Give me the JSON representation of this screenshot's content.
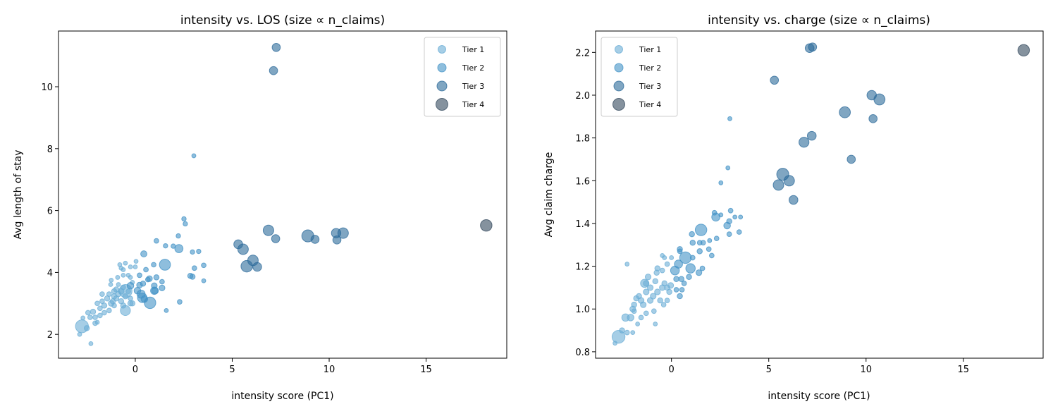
{
  "chart_data": [
    {
      "type": "scatter",
      "title": "intensity vs. LOS (size ∝ n_claims)",
      "xlabel": "intensity score (PC1)",
      "ylabel": "Avg length of stay",
      "xlim": [
        -3.96,
        19.16
      ],
      "ylim": [
        1.23,
        11.8
      ],
      "xticks": [
        0,
        5,
        10,
        15
      ],
      "yticks": [
        2,
        4,
        6,
        8,
        10
      ],
      "grid": false,
      "legend_placement": "top-right",
      "legend": [
        "Tier 1",
        "Tier 2",
        "Tier 3",
        "Tier 4"
      ],
      "point_format": [
        "x",
        "y",
        "size",
        "tier"
      ],
      "points": [
        [
          -2.75,
          2.26,
          150,
          1
        ],
        [
          -2.87,
          2.0,
          15,
          1
        ],
        [
          -2.29,
          1.7,
          15,
          1
        ],
        [
          -2.33,
          2.55,
          20,
          1
        ],
        [
          -2.7,
          2.53,
          15,
          1
        ],
        [
          -2.5,
          2.2,
          25,
          1
        ],
        [
          -2.07,
          2.55,
          20,
          1
        ],
        [
          -1.96,
          2.39,
          15,
          1
        ],
        [
          -2.18,
          2.73,
          25,
          1
        ],
        [
          -1.82,
          2.84,
          20,
          1
        ],
        [
          -1.6,
          2.93,
          25,
          1
        ],
        [
          -1.71,
          3.07,
          20,
          1
        ],
        [
          -1.45,
          3.16,
          25,
          1
        ],
        [
          -1.24,
          3.0,
          30,
          1
        ],
        [
          -1.09,
          3.23,
          25,
          1
        ],
        [
          -1.35,
          3.3,
          20,
          1
        ],
        [
          -0.98,
          3.45,
          25,
          1
        ],
        [
          -0.73,
          3.39,
          30,
          1
        ],
        [
          -0.62,
          3.52,
          20,
          1
        ],
        [
          -0.87,
          3.61,
          15,
          1
        ],
        [
          -0.51,
          3.23,
          25,
          1
        ],
        [
          -0.36,
          3.39,
          20,
          1
        ],
        [
          -0.25,
          3.16,
          20,
          1
        ],
        [
          -0.51,
          2.77,
          90,
          1
        ],
        [
          -1.09,
          2.93,
          20,
          1
        ],
        [
          -1.35,
          2.77,
          20,
          1
        ],
        [
          -1.6,
          2.7,
          20,
          1
        ],
        [
          -1.24,
          3.75,
          15,
          1
        ],
        [
          -1.27,
          3.61,
          15,
          1
        ],
        [
          -0.91,
          3.84,
          15,
          1
        ],
        [
          -0.73,
          4.14,
          15,
          1
        ],
        [
          -0.8,
          4.25,
          15,
          1
        ],
        [
          -0.51,
          4.3,
          15,
          1
        ],
        [
          -0.25,
          4.18,
          15,
          1
        ],
        [
          0.0,
          4.18,
          15,
          1
        ],
        [
          0.04,
          4.36,
          15,
          1
        ],
        [
          -0.62,
          4.09,
          15,
          1
        ],
        [
          -0.36,
          3.91,
          15,
          1
        ],
        [
          -0.25,
          3.84,
          15,
          1
        ],
        [
          -0.15,
          3.68,
          15,
          1
        ],
        [
          -0.62,
          3.91,
          15,
          1
        ],
        [
          -1.71,
          3.3,
          20,
          1
        ],
        [
          -1.96,
          3.0,
          20,
          1
        ],
        [
          -1.82,
          2.61,
          20,
          1
        ],
        [
          -2.44,
          2.7,
          20,
          1
        ],
        [
          -2.07,
          2.36,
          20,
          1
        ],
        [
          -0.25,
          3.0,
          25,
          1
        ],
        [
          -0.73,
          3.07,
          25,
          1
        ],
        [
          -0.98,
          3.16,
          25,
          1
        ],
        [
          -0.62,
          2.93,
          25,
          1
        ],
        [
          -0.15,
          3.0,
          25,
          1
        ],
        [
          -1.09,
          3.39,
          25,
          1
        ],
        [
          -0.87,
          3.3,
          25,
          1
        ],
        [
          -1.16,
          3.07,
          25,
          1
        ],
        [
          -0.5,
          3.4,
          150,
          1
        ],
        [
          2.51,
          5.73,
          18,
          2
        ],
        [
          2.58,
          5.57,
          18,
          2
        ],
        [
          2.25,
          4.77,
          60,
          2
        ],
        [
          1.09,
          5.02,
          20,
          2
        ],
        [
          0.44,
          4.6,
          35,
          2
        ],
        [
          1.56,
          4.86,
          18,
          2
        ],
        [
          1.96,
          4.85,
          18,
          2
        ],
        [
          2.22,
          5.18,
          18,
          2
        ],
        [
          3.05,
          4.14,
          20,
          2
        ],
        [
          3.27,
          4.68,
          18,
          2
        ],
        [
          2.95,
          4.66,
          18,
          2
        ],
        [
          3.53,
          4.23,
          20,
          2
        ],
        [
          3.53,
          3.73,
          15,
          2
        ],
        [
          1.53,
          4.25,
          110,
          2
        ],
        [
          1.6,
          2.77,
          15,
          2
        ],
        [
          2.29,
          3.05,
          20,
          2
        ],
        [
          0.73,
          3.8,
          30,
          2
        ],
        [
          0.98,
          3.57,
          30,
          2
        ],
        [
          1.09,
          3.84,
          25,
          2
        ],
        [
          1.38,
          3.5,
          30,
          2
        ],
        [
          1.38,
          3.7,
          20,
          2
        ],
        [
          0.76,
          3.02,
          120,
          2
        ],
        [
          0.47,
          3.14,
          40,
          2
        ],
        [
          0.98,
          3.41,
          50,
          2
        ],
        [
          0.22,
          3.59,
          30,
          2
        ],
        [
          0.4,
          3.64,
          25,
          2
        ],
        [
          0.65,
          3.77,
          20,
          2
        ],
        [
          0.55,
          4.09,
          20,
          2
        ],
        [
          0.11,
          3.41,
          40,
          2
        ],
        [
          0.22,
          3.91,
          20,
          2
        ],
        [
          -0.25,
          3.57,
          40,
          2
        ],
        [
          0.95,
          4.25,
          20,
          2
        ],
        [
          3.02,
          7.77,
          15,
          2
        ],
        [
          2.84,
          3.89,
          25,
          2
        ],
        [
          2.95,
          3.86,
          25,
          2
        ],
        [
          0.36,
          3.18,
          80,
          2
        ],
        [
          1.02,
          3.41,
          40,
          2
        ],
        [
          0.3,
          3.3,
          60,
          2
        ],
        [
          7.27,
          11.27,
          60,
          3
        ],
        [
          7.13,
          10.52,
          60,
          3
        ],
        [
          6.87,
          5.36,
          100,
          3
        ],
        [
          7.24,
          5.09,
          60,
          3
        ],
        [
          5.31,
          4.91,
          70,
          3
        ],
        [
          5.56,
          4.75,
          100,
          3
        ],
        [
          6.07,
          4.39,
          100,
          3
        ],
        [
          5.75,
          4.2,
          120,
          3
        ],
        [
          6.29,
          4.18,
          70,
          3
        ],
        [
          8.9,
          5.18,
          130,
          3
        ],
        [
          9.27,
          5.07,
          60,
          3
        ],
        [
          10.36,
          5.27,
          80,
          3
        ],
        [
          10.72,
          5.27,
          100,
          3
        ],
        [
          10.4,
          5.05,
          60,
          3
        ],
        [
          18.1,
          5.52,
          120,
          4
        ]
      ]
    },
    {
      "type": "scatter",
      "title": "intensity vs. charge (size ∝ n_claims)",
      "xlabel": "intensity score (PC1)",
      "ylabel": "Avg claim charge",
      "xlim": [
        -3.9,
        19.1
      ],
      "ylim": [
        0.77,
        2.3
      ],
      "xticks": [
        0,
        5,
        10,
        15
      ],
      "yticks": [
        0.8,
        1.0,
        1.2,
        1.4,
        1.6,
        1.8,
        2.0,
        2.2
      ],
      "grid": false,
      "legend_placement": "top-left",
      "legend": [
        "Tier 1",
        "Tier 2",
        "Tier 3",
        "Tier 4"
      ],
      "point_format": [
        "x",
        "y",
        "size",
        "tier"
      ],
      "points": [
        [
          -2.72,
          0.87,
          150,
          1
        ],
        [
          -2.9,
          0.84,
          15,
          1
        ],
        [
          -2.54,
          0.9,
          25,
          1
        ],
        [
          -2.28,
          0.89,
          20,
          1
        ],
        [
          -1.99,
          0.89,
          15,
          1
        ],
        [
          -2.36,
          0.96,
          50,
          1
        ],
        [
          -2.1,
          0.96,
          40,
          1
        ],
        [
          -1.99,
          1.0,
          30,
          1
        ],
        [
          -1.74,
          0.93,
          15,
          1
        ],
        [
          -1.56,
          0.96,
          20,
          1
        ],
        [
          -0.83,
          0.93,
          15,
          1
        ],
        [
          -2.28,
          1.21,
          15,
          1
        ],
        [
          -1.81,
          1.05,
          25,
          1
        ],
        [
          -1.56,
          1.04,
          30,
          1
        ],
        [
          -1.3,
          1.08,
          30,
          1
        ],
        [
          -1.3,
          1.12,
          30,
          1
        ],
        [
          -1.09,
          1.1,
          30,
          1
        ],
        [
          -0.94,
          1.06,
          30,
          1
        ],
        [
          -0.83,
          1.13,
          25,
          1
        ],
        [
          -0.72,
          1.08,
          30,
          1
        ],
        [
          -0.58,
          1.04,
          25,
          1
        ],
        [
          -0.47,
          1.1,
          30,
          1
        ],
        [
          -0.36,
          1.12,
          25,
          1
        ],
        [
          -0.22,
          1.1,
          25,
          1
        ],
        [
          -0.47,
          1.18,
          20,
          1
        ],
        [
          -0.47,
          1.25,
          15,
          1
        ],
        [
          -0.36,
          1.24,
          15,
          1
        ],
        [
          -0.22,
          1.21,
          20,
          1
        ],
        [
          -0.72,
          1.19,
          25,
          1
        ],
        [
          -1.2,
          1.15,
          30,
          1
        ],
        [
          -1.67,
          1.06,
          25,
          1
        ],
        [
          -1.92,
          1.02,
          25,
          1
        ],
        [
          -1.45,
          1.02,
          30,
          1
        ],
        [
          -1.09,
          1.04,
          30,
          1
        ],
        [
          -0.4,
          1.02,
          20,
          1
        ],
        [
          -0.22,
          1.04,
          20,
          1
        ],
        [
          -0.11,
          1.08,
          25,
          1
        ],
        [
          -0.9,
          0.99,
          20,
          1
        ],
        [
          -1.3,
          0.98,
          20,
          1
        ],
        [
          -1.92,
          0.99,
          20,
          1
        ],
        [
          -0.76,
          1.17,
          25,
          1
        ],
        [
          -0.04,
          1.11,
          30,
          1
        ],
        [
          0.0,
          1.24,
          15,
          1
        ],
        [
          -1.38,
          1.12,
          60,
          1
        ],
        [
          0.18,
          1.18,
          70,
          2
        ],
        [
          0.36,
          1.21,
          60,
          2
        ],
        [
          0.72,
          1.24,
          120,
          2
        ],
        [
          0.98,
          1.19,
          80,
          2
        ],
        [
          0.43,
          1.28,
          25,
          2
        ],
        [
          0.43,
          1.27,
          20,
          2
        ],
        [
          0.25,
          1.14,
          25,
          2
        ],
        [
          0.51,
          1.14,
          25,
          2
        ],
        [
          0.65,
          1.12,
          20,
          2
        ],
        [
          0.25,
          1.09,
          20,
          2
        ],
        [
          0.54,
          1.09,
          20,
          2
        ],
        [
          0.43,
          1.06,
          25,
          2
        ],
        [
          0.9,
          1.15,
          25,
          2
        ],
        [
          1.41,
          1.17,
          30,
          2
        ],
        [
          1.59,
          1.19,
          20,
          2
        ],
        [
          1.09,
          1.24,
          20,
          2
        ],
        [
          1.05,
          1.35,
          25,
          2
        ],
        [
          1.09,
          1.31,
          25,
          2
        ],
        [
          1.52,
          1.37,
          120,
          2
        ],
        [
          1.45,
          1.31,
          20,
          2
        ],
        [
          1.45,
          1.27,
          25,
          2
        ],
        [
          1.63,
          1.31,
          20,
          2
        ],
        [
          1.92,
          1.28,
          20,
          2
        ],
        [
          1.96,
          1.32,
          15,
          2
        ],
        [
          2.07,
          1.25,
          20,
          2
        ],
        [
          2.32,
          1.33,
          20,
          2
        ],
        [
          2.28,
          1.43,
          60,
          2
        ],
        [
          2.21,
          1.45,
          20,
          2
        ],
        [
          2.54,
          1.44,
          15,
          2
        ],
        [
          2.54,
          1.59,
          15,
          2
        ],
        [
          2.9,
          1.66,
          15,
          2
        ],
        [
          2.86,
          1.39,
          40,
          2
        ],
        [
          2.97,
          1.41,
          25,
          2
        ],
        [
          3.04,
          1.46,
          20,
          2
        ],
        [
          3.26,
          1.43,
          15,
          2
        ],
        [
          3.55,
          1.43,
          15,
          2
        ],
        [
          2.97,
          1.35,
          20,
          2
        ],
        [
          3.48,
          1.36,
          20,
          2
        ],
        [
          3.0,
          1.89,
          15,
          2
        ],
        [
          7.1,
          2.22,
          70,
          3
        ],
        [
          7.25,
          2.225,
          60,
          3
        ],
        [
          5.29,
          2.07,
          60,
          3
        ],
        [
          10.29,
          2.0,
          80,
          3
        ],
        [
          10.69,
          1.98,
          110,
          3
        ],
        [
          10.36,
          1.89,
          60,
          3
        ],
        [
          8.91,
          1.92,
          110,
          3
        ],
        [
          9.24,
          1.7,
          60,
          3
        ],
        [
          6.81,
          1.78,
          90,
          3
        ],
        [
          7.21,
          1.81,
          70,
          3
        ],
        [
          5.72,
          1.63,
          130,
          3
        ],
        [
          5.5,
          1.58,
          100,
          3
        ],
        [
          6.05,
          1.6,
          100,
          3
        ],
        [
          6.27,
          1.51,
          70,
          3
        ],
        [
          18.1,
          2.21,
          120,
          4
        ]
      ]
    }
  ],
  "tier_colors": {
    "1": "#6baed6",
    "2": "#4292c6",
    "3": "#2c6a9a",
    "4": "#34495e"
  }
}
